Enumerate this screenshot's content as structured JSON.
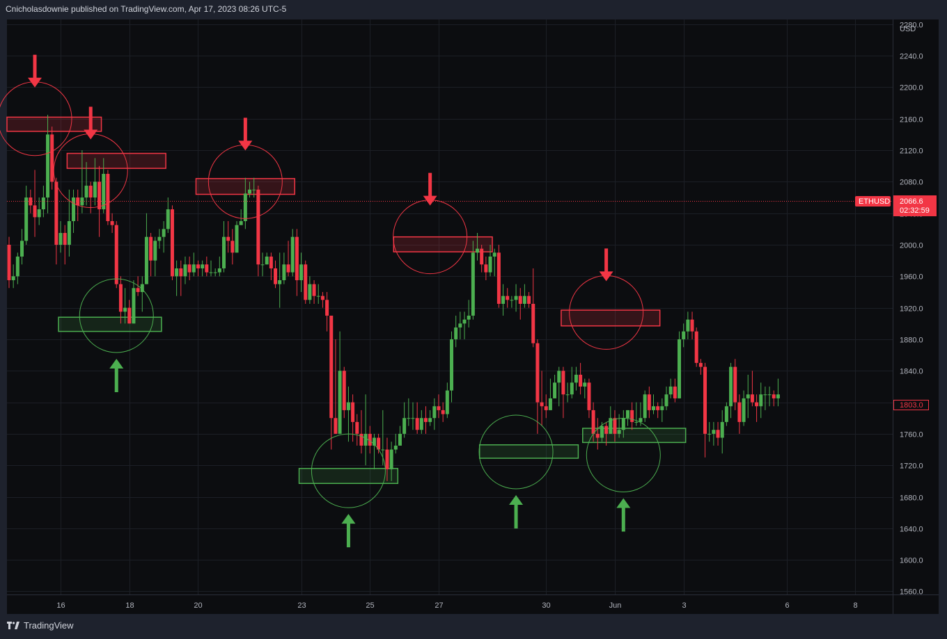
{
  "header": {
    "publisher_text": "Cnicholasdownie published on TradingView.com, Apr 17, 2023 08:26 UTC-5"
  },
  "footer": {
    "brand": "TradingView"
  },
  "colors": {
    "background": "#0c0d10",
    "frame": "#1e222d",
    "up": "#4caf50",
    "down": "#f23645",
    "resistance": "#f23645",
    "support": "#4caf50",
    "grid": "#1c1f26"
  },
  "icons": {
    "brand_logo": "tradingview-logo-icon",
    "resistance_marker": "down-arrow-icon",
    "support_marker": "up-arrow-icon"
  },
  "chart_data": {
    "type": "candlestick",
    "symbol": "ETHUSD",
    "currency": "USD",
    "last_price": "2066.6",
    "countdown": "02:32:59",
    "price_label_2": "1803.0",
    "y_ticks": [
      "2280.0",
      "2240.0",
      "2200.0",
      "2160.0",
      "2120.0",
      "2080.0",
      "2040.0",
      "2000.0",
      "1960.0",
      "1920.0",
      "1880.0",
      "1840.0",
      "1800.0",
      "1760.0",
      "1720.0",
      "1680.0",
      "1640.0",
      "1600.0",
      "1560.0"
    ],
    "x_ticks": [
      "16",
      "18",
      "20",
      "23",
      "25",
      "27",
      "30",
      "Jun",
      "3",
      "6",
      "8"
    ],
    "ylim": [
      1556,
      2286
    ],
    "grid": true,
    "candles": [
      [
        2000,
        1955,
        2010,
        1945
      ],
      [
        1955,
        1960,
        1975,
        1945
      ],
      [
        1960,
        1985,
        1990,
        1950
      ],
      [
        1985,
        2005,
        2020,
        1975
      ],
      [
        2005,
        2060,
        2075,
        2000
      ],
      [
        2060,
        2050,
        2070,
        2040
      ],
      [
        2050,
        2035,
        2095,
        2010
      ],
      [
        2035,
        2045,
        2060,
        2025
      ],
      [
        2045,
        2060,
        2075,
        2035
      ],
      [
        2060,
        2140,
        2165,
        2040
      ],
      [
        2140,
        2080,
        2150,
        2070
      ],
      [
        2080,
        2000,
        2085,
        1975
      ],
      [
        2000,
        2015,
        2030,
        1990
      ],
      [
        2015,
        2000,
        2025,
        1975
      ],
      [
        2000,
        2030,
        2070,
        1985
      ],
      [
        2030,
        2060,
        2070,
        2015
      ],
      [
        2060,
        2050,
        2070,
        2030
      ],
      [
        2050,
        2060,
        2120,
        2040
      ],
      [
        2060,
        2075,
        2105,
        2050
      ],
      [
        2075,
        2060,
        2080,
        2040
      ],
      [
        2060,
        2080,
        2110,
        2050
      ],
      [
        2080,
        2045,
        2100,
        2010
      ],
      [
        2045,
        2090,
        2110,
        2040
      ],
      [
        2090,
        2030,
        2095,
        2025
      ],
      [
        2030,
        2025,
        2040,
        2015
      ],
      [
        2025,
        1950,
        2030,
        1945
      ],
      [
        1950,
        1915,
        1960,
        1900
      ],
      [
        1915,
        1920,
        1945,
        1900
      ],
      [
        1920,
        1900,
        1930,
        1900
      ],
      [
        1900,
        1945,
        1955,
        1900
      ],
      [
        1945,
        1940,
        1960,
        1935
      ],
      [
        1940,
        1950,
        1960,
        1915
      ],
      [
        1950,
        2010,
        2040,
        1950
      ],
      [
        2010,
        1980,
        2015,
        1960
      ],
      [
        1980,
        2005,
        2010,
        1960
      ],
      [
        2005,
        2010,
        2020,
        1995
      ],
      [
        2010,
        2020,
        2030,
        1990
      ],
      [
        2020,
        2045,
        2060,
        2015
      ],
      [
        2045,
        1960,
        2050,
        1955
      ],
      [
        1960,
        1970,
        1980,
        1935
      ],
      [
        1970,
        1960,
        1980,
        1935
      ],
      [
        1960,
        1975,
        1985,
        1950
      ],
      [
        1975,
        1965,
        1985,
        1955
      ],
      [
        1965,
        1975,
        1990,
        1960
      ],
      [
        1975,
        1970,
        1980,
        1960
      ],
      [
        1970,
        1975,
        1980,
        1960
      ],
      [
        1975,
        1965,
        1985,
        1960
      ],
      [
        1965,
        1965,
        1980,
        1960
      ],
      [
        1965,
        1965,
        1970,
        1960
      ],
      [
        1965,
        1970,
        1985,
        1960
      ],
      [
        1970,
        2010,
        2030,
        1965
      ],
      [
        2010,
        2005,
        2030,
        1990
      ],
      [
        2005,
        1990,
        2020,
        1975
      ],
      [
        1990,
        2025,
        2030,
        1990
      ],
      [
        2025,
        2030,
        2045,
        2025
      ],
      [
        2030,
        2065,
        2085,
        2020
      ],
      [
        2065,
        2070,
        2080,
        2060
      ],
      [
        2070,
        2070,
        2085,
        2060
      ],
      [
        2070,
        1975,
        2075,
        1960
      ],
      [
        1975,
        1975,
        1990,
        1960
      ],
      [
        1975,
        1985,
        1990,
        1975
      ],
      [
        1985,
        1970,
        1990,
        1955
      ],
      [
        1970,
        1950,
        1980,
        1945
      ],
      [
        1950,
        1955,
        1990,
        1920
      ],
      [
        1955,
        1975,
        1990,
        1950
      ],
      [
        1975,
        1965,
        2005,
        1960
      ],
      [
        1965,
        2010,
        2020,
        1960
      ],
      [
        2010,
        1955,
        2020,
        1935
      ],
      [
        1955,
        1975,
        1990,
        1940
      ],
      [
        1975,
        1930,
        1980,
        1925
      ],
      [
        1930,
        1950,
        1960,
        1925
      ],
      [
        1950,
        1935,
        1955,
        1925
      ],
      [
        1935,
        1935,
        1950,
        1925
      ],
      [
        1935,
        1930,
        1940,
        1920
      ],
      [
        1930,
        1910,
        1940,
        1890
      ],
      [
        1910,
        1780,
        1910,
        1740
      ],
      [
        1780,
        1760,
        1880,
        1760
      ],
      [
        1760,
        1840,
        1890,
        1790
      ],
      [
        1840,
        1790,
        1845,
        1780
      ],
      [
        1790,
        1800,
        1820,
        1750
      ],
      [
        1800,
        1775,
        1810,
        1750
      ],
      [
        1775,
        1760,
        1785,
        1745
      ],
      [
        1760,
        1745,
        1790,
        1735
      ],
      [
        1745,
        1760,
        1810,
        1720
      ],
      [
        1760,
        1745,
        1770,
        1735
      ],
      [
        1745,
        1755,
        1760,
        1715
      ],
      [
        1755,
        1740,
        1760,
        1735
      ],
      [
        1740,
        1740,
        1790,
        1720
      ],
      [
        1740,
        1715,
        1755,
        1700
      ],
      [
        1715,
        1740,
        1750,
        1700
      ],
      [
        1740,
        1745,
        1760,
        1735
      ],
      [
        1745,
        1760,
        1770,
        1745
      ],
      [
        1760,
        1780,
        1800,
        1755
      ],
      [
        1780,
        1780,
        1805,
        1770
      ],
      [
        1780,
        1780,
        1800,
        1765
      ],
      [
        1780,
        1765,
        1800,
        1760
      ],
      [
        1765,
        1780,
        1790,
        1760
      ],
      [
        1780,
        1775,
        1795,
        1760
      ],
      [
        1775,
        1780,
        1790,
        1770
      ],
      [
        1780,
        1795,
        1805,
        1765
      ],
      [
        1795,
        1790,
        1810,
        1780
      ],
      [
        1790,
        1785,
        1800,
        1775
      ],
      [
        1785,
        1815,
        1825,
        1780
      ],
      [
        1815,
        1880,
        1890,
        1800
      ],
      [
        1880,
        1895,
        1910,
        1870
      ],
      [
        1895,
        1900,
        1915,
        1880
      ],
      [
        1900,
        1905,
        1915,
        1880
      ],
      [
        1905,
        1910,
        1930,
        1895
      ],
      [
        1910,
        1990,
        2005,
        1905
      ],
      [
        1990,
        1995,
        2015,
        1980
      ],
      [
        1995,
        1975,
        2000,
        1965
      ],
      [
        1975,
        1965,
        1985,
        1955
      ],
      [
        1965,
        1985,
        2000,
        1960
      ],
      [
        1985,
        1990,
        1995,
        1960
      ],
      [
        1990,
        1925,
        2000,
        1920
      ],
      [
        1925,
        1935,
        1950,
        1910
      ],
      [
        1935,
        1930,
        1945,
        1920
      ],
      [
        1930,
        1930,
        1935,
        1920
      ],
      [
        1930,
        1935,
        1950,
        1915
      ],
      [
        1935,
        1925,
        1945,
        1905
      ],
      [
        1925,
        1935,
        1950,
        1920
      ],
      [
        1935,
        1925,
        1940,
        1920
      ],
      [
        1925,
        1875,
        1970,
        1870
      ],
      [
        1875,
        1800,
        1880,
        1760
      ],
      [
        1800,
        1795,
        1840,
        1770
      ],
      [
        1795,
        1790,
        1810,
        1780
      ],
      [
        1790,
        1805,
        1830,
        1790
      ],
      [
        1805,
        1825,
        1835,
        1805
      ],
      [
        1825,
        1840,
        1845,
        1795
      ],
      [
        1840,
        1810,
        1845,
        1780
      ],
      [
        1810,
        1810,
        1825,
        1800
      ],
      [
        1810,
        1825,
        1845,
        1805
      ],
      [
        1825,
        1835,
        1845,
        1815
      ],
      [
        1835,
        1820,
        1850,
        1810
      ],
      [
        1820,
        1825,
        1830,
        1805
      ],
      [
        1825,
        1790,
        1830,
        1780
      ],
      [
        1790,
        1760,
        1800,
        1750
      ],
      [
        1760,
        1755,
        1780,
        1740
      ],
      [
        1755,
        1770,
        1775,
        1750
      ],
      [
        1770,
        1760,
        1775,
        1745
      ],
      [
        1760,
        1780,
        1795,
        1760
      ],
      [
        1780,
        1760,
        1790,
        1750
      ],
      [
        1760,
        1765,
        1785,
        1755
      ],
      [
        1765,
        1780,
        1790,
        1755
      ],
      [
        1780,
        1790,
        1790,
        1770
      ],
      [
        1790,
        1775,
        1800,
        1765
      ],
      [
        1775,
        1775,
        1800,
        1770
      ],
      [
        1775,
        1780,
        1800,
        1770
      ],
      [
        1780,
        1810,
        1815,
        1775
      ],
      [
        1810,
        1790,
        1820,
        1780
      ],
      [
        1790,
        1795,
        1810,
        1785
      ],
      [
        1795,
        1790,
        1800,
        1780
      ],
      [
        1790,
        1795,
        1805,
        1775
      ],
      [
        1795,
        1810,
        1820,
        1790
      ],
      [
        1810,
        1820,
        1830,
        1805
      ],
      [
        1820,
        1805,
        1830,
        1800
      ],
      [
        1805,
        1880,
        1890,
        1805
      ],
      [
        1880,
        1890,
        1900,
        1870
      ],
      [
        1890,
        1905,
        1915,
        1880
      ],
      [
        1905,
        1890,
        1915,
        1880
      ],
      [
        1890,
        1850,
        1895,
        1845
      ],
      [
        1850,
        1845,
        1855,
        1835
      ],
      [
        1845,
        1760,
        1850,
        1730
      ],
      [
        1760,
        1760,
        1775,
        1750
      ],
      [
        1760,
        1765,
        1775,
        1745
      ],
      [
        1765,
        1755,
        1775,
        1745
      ],
      [
        1755,
        1775,
        1790,
        1735
      ],
      [
        1775,
        1795,
        1800,
        1770
      ],
      [
        1795,
        1845,
        1850,
        1780
      ],
      [
        1845,
        1800,
        1855,
        1790
      ],
      [
        1800,
        1775,
        1810,
        1760
      ],
      [
        1775,
        1805,
        1815,
        1770
      ],
      [
        1805,
        1810,
        1835,
        1780
      ],
      [
        1810,
        1800,
        1840,
        1795
      ],
      [
        1800,
        1795,
        1810,
        1775
      ],
      [
        1795,
        1810,
        1825,
        1780
      ],
      [
        1810,
        1810,
        1820,
        1790
      ],
      [
        1810,
        1810,
        1820,
        1795
      ],
      [
        1810,
        1805,
        1815,
        1795
      ],
      [
        1805,
        1810,
        1830,
        1795
      ]
    ],
    "resistance_zones": [
      {
        "low": 2144,
        "high": 2162,
        "from": 0,
        "to": 21
      },
      {
        "low": 2097,
        "high": 2116,
        "from": 14,
        "to": 36
      },
      {
        "low": 2064,
        "high": 2084,
        "from": 44,
        "to": 66
      },
      {
        "low": 1991,
        "high": 2010,
        "from": 90,
        "to": 112
      },
      {
        "low": 1897,
        "high": 1917,
        "from": 129,
        "to": 151
      }
    ],
    "support_zones": [
      {
        "low": 1890,
        "high": 1908,
        "from": 12,
        "to": 35
      },
      {
        "low": 1697,
        "high": 1716,
        "from": 68,
        "to": 90
      },
      {
        "low": 1729,
        "high": 1746,
        "from": 110,
        "to": 132
      },
      {
        "low": 1749,
        "high": 1767,
        "from": 134,
        "to": 157
      }
    ],
    "circles": [
      {
        "type": "resistance",
        "price": 2160,
        "index": 6,
        "marker": "down"
      },
      {
        "type": "resistance",
        "price": 2094,
        "index": 19,
        "marker": "down"
      },
      {
        "type": "resistance",
        "price": 2080,
        "index": 55,
        "marker": "down"
      },
      {
        "type": "resistance",
        "price": 2010,
        "index": 98,
        "marker": "down"
      },
      {
        "type": "resistance",
        "price": 1914,
        "index": 139,
        "marker": "down"
      },
      {
        "type": "support",
        "price": 1910,
        "index": 25,
        "marker": "up"
      },
      {
        "type": "support",
        "price": 1713,
        "index": 79,
        "marker": "up"
      },
      {
        "type": "support",
        "price": 1737,
        "index": 118,
        "marker": "up"
      },
      {
        "type": "support",
        "price": 1733,
        "index": 143,
        "marker": "up"
      }
    ]
  }
}
